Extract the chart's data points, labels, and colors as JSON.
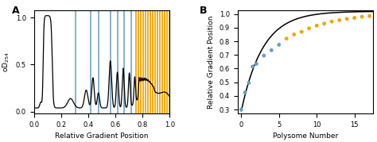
{
  "panel_A": {
    "blue_vlines": [
      0.305,
      0.42,
      0.475,
      0.565,
      0.615,
      0.665,
      0.715
    ],
    "orange_vlines_start": 0.755,
    "orange_vlines_end": 1.0,
    "orange_vlines_n": 15,
    "blue_color": "#7aaac8",
    "orange_color": "#f0a500",
    "xlabel": "Relative Gradient Position",
    "ylabel": "oD$_{254}$",
    "xlim": [
      0.0,
      1.0
    ],
    "ylim": [
      -0.02,
      1.08
    ]
  },
  "panel_B": {
    "blue_x": [
      0,
      0.5,
      1,
      1.5,
      2,
      3,
      4,
      5
    ],
    "blue_y": [
      0.3,
      0.425,
      0.495,
      0.615,
      0.635,
      0.695,
      0.735,
      0.775
    ],
    "orange_x": [
      6,
      7,
      8,
      9,
      10,
      11,
      12,
      13,
      14,
      15,
      16,
      17
    ],
    "orange_y": [
      0.82,
      0.85,
      0.87,
      0.895,
      0.915,
      0.93,
      0.945,
      0.955,
      0.965,
      0.972,
      0.98,
      0.985
    ],
    "blue_color": "#6a9fc0",
    "orange_color": "#f0a500",
    "xlabel": "Polysome Number",
    "ylabel": "Relative Gradient Position",
    "xlim": [
      -0.5,
      17.5
    ],
    "ylim": [
      0.27,
      1.03
    ],
    "yticks": [
      0.3,
      0.4,
      0.5,
      0.6,
      0.7,
      0.8,
      0.9,
      1.0
    ],
    "xticks": [
      0,
      5,
      10,
      15
    ]
  }
}
